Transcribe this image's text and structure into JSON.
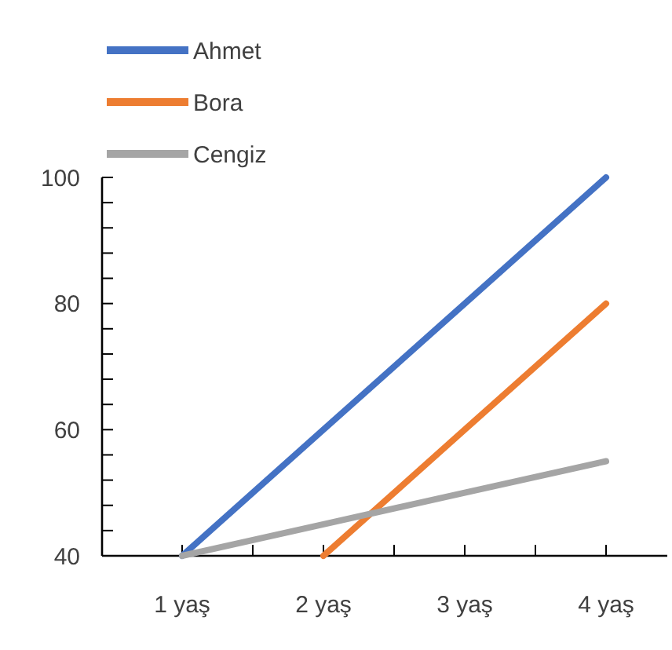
{
  "chart_data": {
    "type": "line",
    "categories": [
      "1 yaş",
      "2 yaş",
      "3 yaş",
      "4 yaş"
    ],
    "series": [
      {
        "name": "Ahmet",
        "color": "#4472c4",
        "values": [
          40,
          60,
          80,
          100
        ]
      },
      {
        "name": "Bora",
        "color": "#ed7d31",
        "values": [
          null,
          40,
          60,
          80
        ]
      },
      {
        "name": "Cengiz",
        "color": "#a5a5a5",
        "values": [
          40,
          45,
          50,
          55
        ]
      }
    ],
    "ylim": [
      40,
      100
    ],
    "yticks": [
      40,
      {
        "value": 44,
        "label": null
      },
      {
        "value": 48,
        "label": null
      },
      {
        "value": 52,
        "label": null
      },
      {
        "value": 56,
        "label": null
      },
      60,
      {
        "value": 64,
        "label": null
      },
      {
        "value": 68,
        "label": null
      },
      {
        "value": 72,
        "label": null
      },
      {
        "value": 76,
        "label": null
      },
      80,
      {
        "value": 84,
        "label": null
      },
      {
        "value": 88,
        "label": null
      },
      {
        "value": 92,
        "label": null
      },
      {
        "value": 96,
        "label": null
      },
      100
    ],
    "legend": "top left",
    "grid": false,
    "line_style": "solid"
  }
}
